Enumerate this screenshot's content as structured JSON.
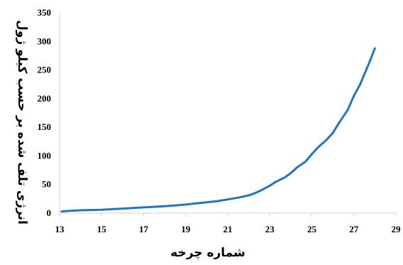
{
  "chart_data": {
    "type": "line",
    "title": "",
    "xlabel": "شماره چرخه",
    "ylabel": "انرژی تلف شده بر حسب کیلو ژول",
    "xlim": [
      13,
      29
    ],
    "ylim": [
      0,
      350
    ],
    "x_ticks": [
      "13",
      "15",
      "17",
      "19",
      "21",
      "23",
      "25",
      "27",
      "29"
    ],
    "y_ticks": [
      "0",
      "50",
      "100",
      "150",
      "200",
      "250",
      "300",
      "350"
    ],
    "grid": false,
    "legend": "none",
    "line_color": "#1f77c4",
    "series": [
      {
        "x": [
          13.1,
          13.5,
          14,
          14.5,
          15,
          15.5,
          16,
          16.5,
          17,
          17.5,
          18,
          18.5,
          19,
          19.5,
          20,
          20.5,
          21,
          21.5,
          22,
          22.3,
          22.6,
          23,
          23.3,
          23.7,
          24,
          24.3,
          24.7,
          25,
          25.3,
          25.7,
          26,
          26.3,
          26.7,
          27,
          27.3,
          27.7,
          28
        ],
        "y": [
          3,
          4,
          5,
          5.5,
          6,
          7,
          8,
          9,
          10,
          11,
          12,
          13.5,
          15,
          17,
          19,
          21,
          24,
          27,
          31,
          35,
          40,
          48,
          55,
          62,
          70,
          80,
          90,
          103,
          115,
          128,
          140,
          158,
          180,
          205,
          225,
          260,
          288
        ]
      }
    ]
  }
}
